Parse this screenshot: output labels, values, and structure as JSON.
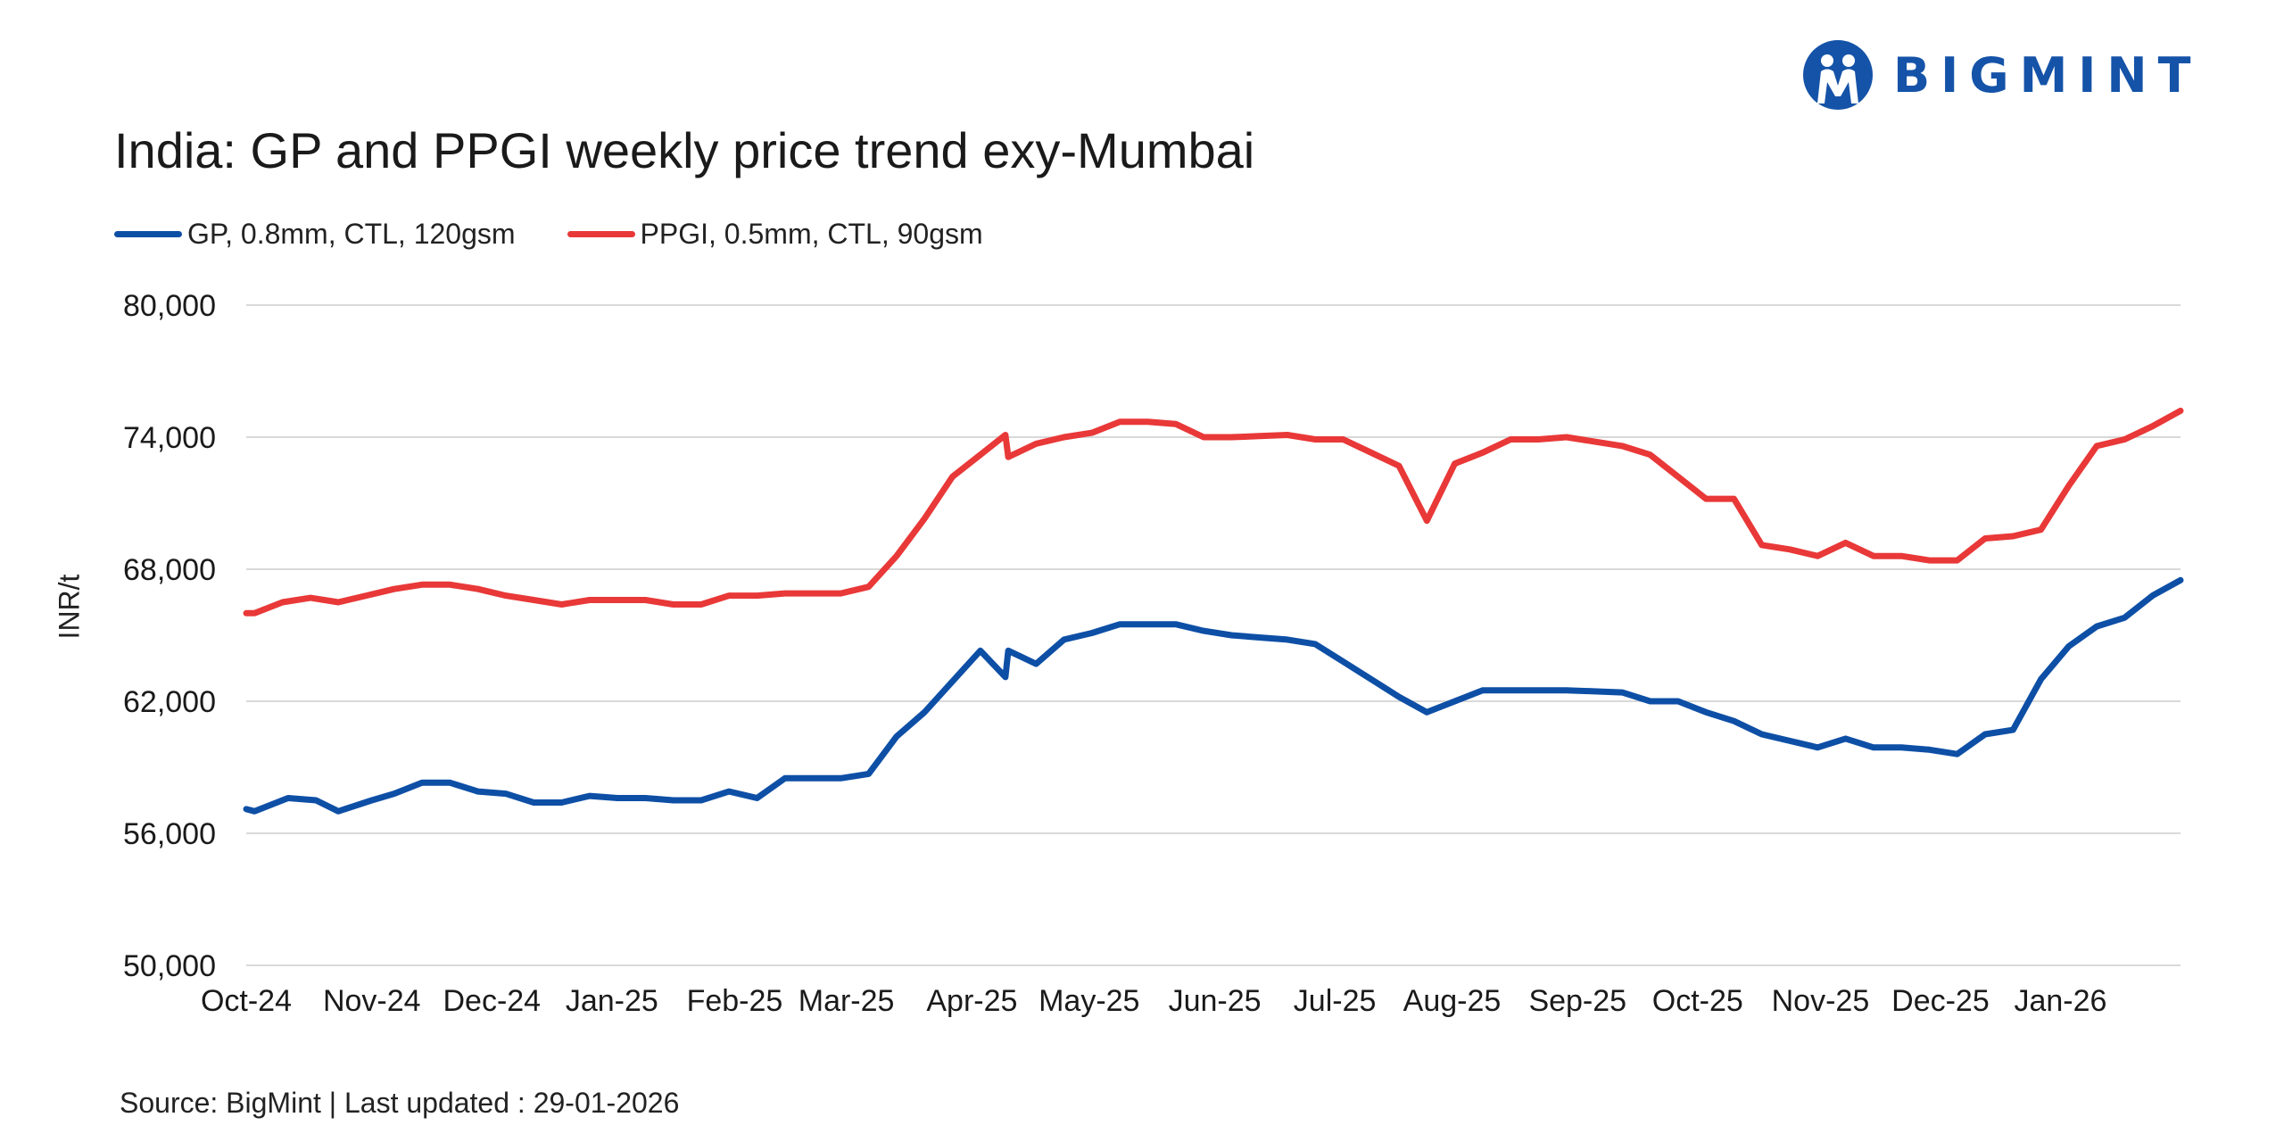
{
  "brand": {
    "name": "BIGMINT",
    "color": "#1553a8"
  },
  "footer": {
    "text": "Source: BigMint | Last updated : 29-01-2026"
  },
  "chart_data": {
    "type": "line",
    "title": "India: GP and PPGI weekly price trend exy-Mumbai",
    "xlabel": "",
    "ylabel": "INR/t",
    "ylim": [
      50000,
      80000
    ],
    "yticks": [
      50000,
      56000,
      62000,
      68000,
      74000,
      80000
    ],
    "ytick_labels": [
      "50,000",
      "56,000",
      "62,000",
      "68,000",
      "74,000",
      "80,000"
    ],
    "grid": true,
    "legend_position": "top-left",
    "x_tick_labels": [
      "Oct-24",
      "Nov-24",
      "Dec-24",
      "Jan-25",
      "Feb-25",
      "Mar-25",
      "Apr-25",
      "May-25",
      "Jun-25",
      "Jul-25",
      "Aug-25",
      "Sep-25",
      "Oct-25",
      "Nov-25",
      "Dec-25",
      "Jan-26"
    ],
    "x_tick_weeks": [
      0,
      4.5,
      8.8,
      13.1,
      17.5,
      21.5,
      26,
      30.2,
      34.7,
      39,
      43.2,
      47.7,
      52,
      56.4,
      60.7,
      65
    ],
    "series": [
      {
        "name": "GP, 0.8mm, CTL, 120gsm",
        "color": "#0e4fa6",
        "points": [
          [
            0,
            57100
          ],
          [
            0.3,
            57000
          ],
          [
            1.5,
            57600
          ],
          [
            2.5,
            57500
          ],
          [
            3.3,
            57000
          ],
          [
            4.5,
            57500
          ],
          [
            5.3,
            57800
          ],
          [
            6.3,
            58300
          ],
          [
            7.3,
            58300
          ],
          [
            8.3,
            57900
          ],
          [
            9.3,
            57800
          ],
          [
            10.3,
            57400
          ],
          [
            11.3,
            57400
          ],
          [
            12.3,
            57700
          ],
          [
            13.3,
            57600
          ],
          [
            14.3,
            57600
          ],
          [
            15.3,
            57500
          ],
          [
            16.3,
            57500
          ],
          [
            17.3,
            57900
          ],
          [
            18.3,
            57600
          ],
          [
            19.3,
            58500
          ],
          [
            20.3,
            58500
          ],
          [
            21.3,
            58500
          ],
          [
            22.3,
            58700
          ],
          [
            23.3,
            60400
          ],
          [
            24.3,
            61500
          ],
          [
            25.3,
            62900
          ],
          [
            26.3,
            64300
          ],
          [
            27.2,
            63100
          ],
          [
            27.3,
            64300
          ],
          [
            28.3,
            63700
          ],
          [
            29.3,
            64800
          ],
          [
            30.3,
            65100
          ],
          [
            31.3,
            65500
          ],
          [
            32.3,
            65500
          ],
          [
            33.3,
            65500
          ],
          [
            34.3,
            65200
          ],
          [
            35.3,
            65000
          ],
          [
            36.3,
            64900
          ],
          [
            37.3,
            64800
          ],
          [
            38.3,
            64600
          ],
          [
            39.3,
            63800
          ],
          [
            40.3,
            63000
          ],
          [
            41.3,
            62200
          ],
          [
            42.3,
            61500
          ],
          [
            43.3,
            62000
          ],
          [
            44.3,
            62500
          ],
          [
            45.3,
            62500
          ],
          [
            46.3,
            62500
          ],
          [
            47.3,
            62500
          ],
          [
            48.3,
            62450
          ],
          [
            49.3,
            62400
          ],
          [
            50.3,
            62000
          ],
          [
            51.3,
            62000
          ],
          [
            52.3,
            61500
          ],
          [
            53.3,
            61100
          ],
          [
            54.3,
            60500
          ],
          [
            55.3,
            60200
          ],
          [
            56.3,
            59900
          ],
          [
            57.3,
            60300
          ],
          [
            58.3,
            59900
          ],
          [
            59.3,
            59900
          ],
          [
            60.3,
            59800
          ],
          [
            61.3,
            59600
          ],
          [
            62.3,
            60500
          ],
          [
            63.3,
            60700
          ],
          [
            64.3,
            63000
          ],
          [
            65.3,
            64500
          ],
          [
            66.3,
            65400
          ],
          [
            67.3,
            65800
          ],
          [
            68.3,
            66800
          ],
          [
            69.3,
            67500
          ]
        ]
      },
      {
        "name": "PPGI, 0.5mm, CTL, 90gsm",
        "color": "#e93838",
        "points": [
          [
            0,
            66000
          ],
          [
            0.3,
            66000
          ],
          [
            1.3,
            66500
          ],
          [
            2.3,
            66700
          ],
          [
            3.3,
            66500
          ],
          [
            4.3,
            66800
          ],
          [
            5.3,
            67100
          ],
          [
            6.3,
            67300
          ],
          [
            7.3,
            67300
          ],
          [
            8.3,
            67100
          ],
          [
            9.3,
            66800
          ],
          [
            10.3,
            66600
          ],
          [
            11.3,
            66400
          ],
          [
            12.3,
            66600
          ],
          [
            13.3,
            66600
          ],
          [
            14.3,
            66600
          ],
          [
            15.3,
            66400
          ],
          [
            16.3,
            66400
          ],
          [
            17.3,
            66800
          ],
          [
            18.3,
            66800
          ],
          [
            19.3,
            66900
          ],
          [
            20.3,
            66900
          ],
          [
            21.3,
            66900
          ],
          [
            22.3,
            67200
          ],
          [
            23.3,
            68600
          ],
          [
            24.3,
            70300
          ],
          [
            25.3,
            72200
          ],
          [
            26.3,
            73200
          ],
          [
            27.2,
            74100
          ],
          [
            27.3,
            73100
          ],
          [
            28.3,
            73700
          ],
          [
            29.3,
            74000
          ],
          [
            30.3,
            74200
          ],
          [
            31.3,
            74700
          ],
          [
            32.3,
            74700
          ],
          [
            33.3,
            74600
          ],
          [
            34.3,
            74000
          ],
          [
            35.3,
            74000
          ],
          [
            36.3,
            74050
          ],
          [
            37.3,
            74100
          ],
          [
            38.3,
            73900
          ],
          [
            39.3,
            73900
          ],
          [
            40.3,
            73300
          ],
          [
            41.3,
            72700
          ],
          [
            42.3,
            70200
          ],
          [
            43.3,
            72800
          ],
          [
            44.3,
            73300
          ],
          [
            45.3,
            73900
          ],
          [
            46.3,
            73900
          ],
          [
            47.3,
            74000
          ],
          [
            48.3,
            73800
          ],
          [
            49.3,
            73600
          ],
          [
            50.3,
            73200
          ],
          [
            51.3,
            72200
          ],
          [
            52.3,
            71200
          ],
          [
            53.3,
            71200
          ],
          [
            54.3,
            69100
          ],
          [
            55.3,
            68900
          ],
          [
            56.3,
            68600
          ],
          [
            57.3,
            69200
          ],
          [
            58.3,
            68600
          ],
          [
            59.3,
            68600
          ],
          [
            60.3,
            68400
          ],
          [
            61.3,
            68400
          ],
          [
            62.3,
            69400
          ],
          [
            63.3,
            69500
          ],
          [
            64.3,
            69800
          ],
          [
            65.3,
            71800
          ],
          [
            66.3,
            73600
          ],
          [
            67.3,
            73900
          ],
          [
            68.3,
            74500
          ],
          [
            69.3,
            75200
          ]
        ]
      }
    ]
  }
}
